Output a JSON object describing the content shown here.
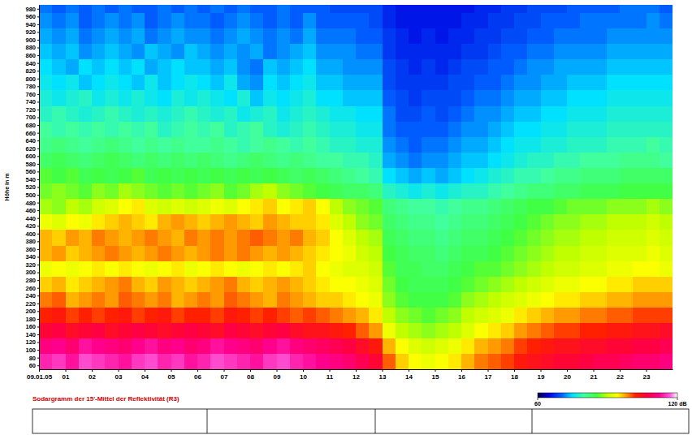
{
  "chart_data": {
    "type": "heatmap",
    "title": "Sodargramm der 15'-Mittel der Reflektivität (R3)",
    "y_label": "Höhe in m",
    "x": [
      0,
      0.5,
      1,
      1.5,
      2,
      2.5,
      3,
      3.5,
      4,
      4.5,
      5,
      5.5,
      6,
      6.5,
      7,
      7.5,
      8,
      8.5,
      9,
      9.5,
      10,
      10.5,
      11,
      11.5,
      12,
      12.5,
      13,
      13.5,
      14,
      14.5,
      15,
      15.5,
      16,
      16.5,
      17,
      17.5,
      18,
      18.5,
      19,
      19.5,
      20,
      20.5,
      21,
      21.5,
      22,
      22.5,
      23,
      23.5
    ],
    "y": [
      50,
      90,
      130,
      170,
      210,
      250,
      290,
      330,
      370,
      410,
      450,
      490,
      530,
      570,
      610,
      650,
      690,
      730,
      770,
      810,
      850,
      890,
      930,
      970
    ],
    "values": [
      [
        114,
        115,
        113,
        116,
        115,
        114,
        113,
        115,
        116,
        114,
        115,
        113,
        114,
        116,
        115,
        114,
        113,
        115,
        116,
        114,
        113,
        112,
        111,
        110,
        108,
        106,
        100,
        96,
        94,
        93,
        94,
        95,
        97,
        99,
        100,
        101,
        103,
        104,
        105,
        106,
        106,
        107,
        108,
        108,
        109,
        110,
        110,
        111
      ],
      [
        111,
        112,
        110,
        113,
        112,
        111,
        110,
        112,
        113,
        111,
        112,
        110,
        111,
        113,
        112,
        111,
        110,
        112,
        113,
        111,
        110,
        109,
        108,
        107,
        105,
        103,
        97,
        94,
        92,
        91,
        92,
        93,
        95,
        97,
        98,
        99,
        101,
        102,
        103,
        104,
        104,
        105,
        105,
        106,
        106,
        107,
        107,
        108
      ],
      [
        106,
        107,
        105,
        106,
        107,
        105,
        106,
        107,
        106,
        105,
        106,
        107,
        106,
        105,
        107,
        106,
        105,
        106,
        107,
        105,
        104,
        104,
        103,
        102,
        100,
        98,
        93,
        90,
        89,
        88,
        89,
        90,
        92,
        94,
        95,
        96,
        98,
        99,
        100,
        101,
        101,
        102,
        102,
        103,
        103,
        104,
        104,
        105
      ],
      [
        102,
        103,
        101,
        102,
        101,
        102,
        103,
        101,
        102,
        103,
        101,
        102,
        102,
        101,
        103,
        102,
        101,
        102,
        101,
        100,
        101,
        100,
        99,
        98,
        97,
        95,
        90,
        88,
        87,
        86,
        87,
        88,
        90,
        91,
        92,
        93,
        95,
        96,
        97,
        98,
        98,
        99,
        99,
        100,
        100,
        101,
        101,
        101
      ],
      [
        99,
        100,
        97,
        98,
        99,
        98,
        100,
        99,
        98,
        99,
        97,
        98,
        99,
        98,
        100,
        99,
        98,
        97,
        99,
        98,
        97,
        96,
        96,
        95,
        94,
        93,
        88,
        86,
        85,
        85,
        85,
        86,
        88,
        89,
        90,
        91,
        92,
        93,
        94,
        95,
        95,
        96,
        96,
        97,
        97,
        98,
        98,
        98
      ],
      [
        96,
        97,
        95,
        96,
        97,
        98,
        99,
        97,
        96,
        98,
        97,
        96,
        97,
        98,
        99,
        97,
        96,
        97,
        98,
        97,
        96,
        95,
        94,
        94,
        93,
        92,
        87,
        85,
        84,
        84,
        84,
        85,
        86,
        87,
        88,
        89,
        90,
        91,
        92,
        93,
        93,
        94,
        94,
        95,
        95,
        96,
        96,
        96
      ],
      [
        93,
        94,
        93,
        94,
        95,
        94,
        95,
        94,
        93,
        94,
        95,
        93,
        94,
        95,
        94,
        93,
        94,
        95,
        94,
        95,
        96,
        94,
        93,
        92,
        92,
        91,
        86,
        84,
        84,
        83,
        83,
        84,
        85,
        86,
        86,
        87,
        88,
        89,
        90,
        91,
        91,
        92,
        92,
        93,
        93,
        94,
        94,
        93
      ],
      [
        97,
        98,
        96,
        97,
        98,
        99,
        98,
        97,
        98,
        99,
        98,
        97,
        98,
        99,
        98,
        99,
        98,
        97,
        98,
        97,
        96,
        95,
        94,
        93,
        91,
        90,
        85,
        84,
        83,
        83,
        82,
        83,
        84,
        84,
        85,
        86,
        87,
        88,
        89,
        90,
        90,
        91,
        91,
        92,
        92,
        92,
        93,
        92
      ],
      [
        97,
        96,
        98,
        97,
        99,
        98,
        97,
        98,
        99,
        98,
        97,
        99,
        98,
        99,
        98,
        99,
        100,
        99,
        98,
        99,
        97,
        96,
        94,
        92,
        90,
        89,
        84,
        83,
        82,
        82,
        81,
        82,
        83,
        83,
        84,
        85,
        86,
        87,
        88,
        89,
        89,
        90,
        90,
        91,
        91,
        91,
        92,
        91
      ],
      [
        93,
        92,
        94,
        93,
        95,
        96,
        97,
        96,
        95,
        97,
        98,
        97,
        96,
        97,
        98,
        97,
        96,
        98,
        97,
        96,
        96,
        95,
        92,
        90,
        88,
        87,
        83,
        82,
        81,
        81,
        80,
        81,
        82,
        82,
        83,
        84,
        85,
        86,
        87,
        88,
        88,
        89,
        89,
        90,
        90,
        90,
        91,
        90
      ],
      [
        89,
        88,
        90,
        89,
        91,
        92,
        94,
        95,
        92,
        91,
        92,
        91,
        92,
        93,
        92,
        94,
        95,
        96,
        94,
        95,
        96,
        94,
        90,
        88,
        87,
        86,
        82,
        81,
        80,
        80,
        79,
        80,
        81,
        81,
        82,
        83,
        84,
        85,
        85,
        86,
        87,
        87,
        87,
        88,
        88,
        88,
        89,
        88
      ],
      [
        87,
        88,
        87,
        86,
        88,
        87,
        89,
        88,
        87,
        86,
        87,
        86,
        87,
        88,
        86,
        87,
        89,
        90,
        88,
        87,
        86,
        85,
        84,
        83,
        83,
        82,
        78,
        77,
        76,
        77,
        76,
        77,
        78,
        78,
        79,
        80,
        81,
        82,
        82,
        83,
        83,
        84,
        84,
        84,
        85,
        85,
        85,
        85
      ],
      [
        86,
        85,
        86,
        84,
        85,
        84,
        85,
        86,
        84,
        85,
        84,
        85,
        84,
        85,
        84,
        85,
        84,
        85,
        84,
        83,
        84,
        83,
        82,
        81,
        80,
        79,
        75,
        74,
        73,
        74,
        73,
        74,
        75,
        76,
        77,
        78,
        79,
        79,
        80,
        81,
        81,
        82,
        82,
        82,
        83,
        83,
        83,
        83
      ],
      [
        83,
        84,
        83,
        82,
        83,
        84,
        83,
        82,
        83,
        82,
        83,
        82,
        83,
        82,
        81,
        82,
        83,
        82,
        81,
        82,
        81,
        80,
        80,
        79,
        79,
        78,
        73,
        72,
        71,
        72,
        72,
        73,
        74,
        74,
        75,
        76,
        77,
        78,
        78,
        79,
        79,
        80,
        80,
        80,
        81,
        81,
        81,
        80
      ],
      [
        81,
        82,
        81,
        80,
        81,
        82,
        81,
        80,
        81,
        80,
        81,
        80,
        80,
        81,
        80,
        79,
        80,
        81,
        80,
        79,
        80,
        79,
        78,
        78,
        77,
        77,
        72,
        71,
        70,
        71,
        71,
        72,
        73,
        73,
        74,
        75,
        76,
        76,
        77,
        77,
        78,
        78,
        78,
        79,
        79,
        79,
        80,
        79
      ],
      [
        80,
        79,
        80,
        79,
        80,
        79,
        80,
        79,
        80,
        78,
        79,
        80,
        79,
        80,
        78,
        79,
        80,
        78,
        77,
        78,
        79,
        78,
        77,
        77,
        76,
        76,
        71,
        70,
        70,
        70,
        70,
        71,
        72,
        72,
        73,
        74,
        75,
        75,
        76,
        76,
        77,
        77,
        77,
        78,
        78,
        78,
        78,
        78
      ],
      [
        78,
        79,
        78,
        77,
        78,
        79,
        78,
        77,
        78,
        77,
        78,
        79,
        78,
        77,
        78,
        76,
        77,
        78,
        76,
        77,
        78,
        77,
        76,
        76,
        75,
        75,
        71,
        69,
        69,
        70,
        69,
        70,
        71,
        72,
        72,
        73,
        74,
        74,
        75,
        75,
        76,
        76,
        76,
        77,
        77,
        77,
        77,
        77
      ],
      [
        77,
        76,
        77,
        78,
        76,
        77,
        76,
        77,
        76,
        75,
        77,
        76,
        77,
        76,
        75,
        77,
        74,
        76,
        75,
        76,
        77,
        75,
        75,
        74,
        74,
        74,
        70,
        69,
        68,
        69,
        69,
        69,
        70,
        71,
        71,
        72,
        73,
        73,
        74,
        74,
        75,
        75,
        75,
        76,
        76,
        76,
        76,
        76
      ],
      [
        76,
        75,
        76,
        74,
        75,
        76,
        75,
        74,
        76,
        74,
        75,
        76,
        75,
        74,
        76,
        73,
        72,
        75,
        74,
        75,
        76,
        74,
        74,
        73,
        73,
        73,
        69,
        68,
        68,
        68,
        68,
        69,
        69,
        70,
        70,
        71,
        72,
        72,
        73,
        73,
        74,
        74,
        74,
        75,
        75,
        75,
        75,
        75
      ],
      [
        75,
        74,
        73,
        75,
        74,
        75,
        74,
        75,
        73,
        74,
        75,
        74,
        74,
        73,
        74,
        72,
        71,
        74,
        73,
        74,
        75,
        73,
        73,
        72,
        72,
        72,
        69,
        68,
        67,
        68,
        67,
        68,
        69,
        69,
        70,
        70,
        71,
        72,
        72,
        73,
        73,
        73,
        73,
        74,
        74,
        74,
        74,
        74
      ],
      [
        74,
        73,
        74,
        72,
        73,
        74,
        73,
        72,
        74,
        73,
        72,
        74,
        73,
        72,
        73,
        72,
        73,
        71,
        72,
        73,
        74,
        72,
        72,
        72,
        71,
        71,
        68,
        67,
        67,
        67,
        67,
        67,
        68,
        68,
        69,
        70,
        70,
        71,
        71,
        72,
        72,
        72,
        72,
        73,
        73,
        73,
        73,
        73
      ],
      [
        73,
        72,
        73,
        71,
        72,
        73,
        72,
        73,
        71,
        72,
        73,
        72,
        72,
        71,
        72,
        73,
        72,
        71,
        72,
        71,
        73,
        71,
        71,
        71,
        70,
        70,
        68,
        67,
        66,
        67,
        66,
        67,
        67,
        68,
        68,
        69,
        69,
        70,
        70,
        71,
        71,
        71,
        71,
        72,
        72,
        72,
        72,
        72
      ],
      [
        72,
        71,
        72,
        70,
        71,
        72,
        71,
        72,
        70,
        71,
        72,
        71,
        71,
        70,
        71,
        72,
        71,
        70,
        71,
        70,
        72,
        70,
        70,
        70,
        70,
        69,
        67,
        66,
        66,
        66,
        66,
        66,
        67,
        67,
        68,
        68,
        69,
        69,
        70,
        70,
        70,
        71,
        71,
        71,
        71,
        71,
        72,
        71
      ],
      [
        71,
        70,
        71,
        70,
        71,
        70,
        71,
        70,
        70,
        71,
        70,
        71,
        70,
        71,
        70,
        71,
        70,
        70,
        71,
        70,
        70,
        70,
        69,
        69,
        69,
        69,
        67,
        66,
        66,
        66,
        66,
        66,
        66,
        67,
        67,
        68,
        68,
        69,
        69,
        69,
        70,
        70,
        70,
        70,
        71,
        71,
        71,
        70
      ]
    ],
    "xlim": [
      0,
      24
    ],
    "xticks": [
      {
        "value": 0,
        "label": "09.01.05"
      },
      {
        "value": 1,
        "label": "01"
      },
      {
        "value": 2,
        "label": "02"
      },
      {
        "value": 3,
        "label": "03"
      },
      {
        "value": 4,
        "label": "04"
      },
      {
        "value": 5,
        "label": "05"
      },
      {
        "value": 6,
        "label": "06"
      },
      {
        "value": 7,
        "label": "07"
      },
      {
        "value": 8,
        "label": "08"
      },
      {
        "value": 9,
        "label": "09"
      },
      10,
      11,
      12,
      13,
      14,
      15,
      16,
      17,
      18,
      19,
      20,
      21,
      22,
      23
    ],
    "ylim": [
      50,
      990
    ],
    "yticks": [
      60,
      80,
      100,
      120,
      140,
      160,
      180,
      200,
      220,
      240,
      260,
      280,
      300,
      320,
      340,
      360,
      380,
      400,
      420,
      440,
      460,
      480,
      500,
      520,
      540,
      560,
      580,
      600,
      620,
      640,
      660,
      680,
      700,
      720,
      740,
      760,
      780,
      800,
      820,
      840,
      860,
      880,
      900,
      920,
      940,
      960,
      980
    ],
    "colorbar": {
      "range": [
        60,
        120
      ],
      "ticks": [
        60,
        {
          "value": 120,
          "label": "120 dB"
        }
      ]
    }
  }
}
